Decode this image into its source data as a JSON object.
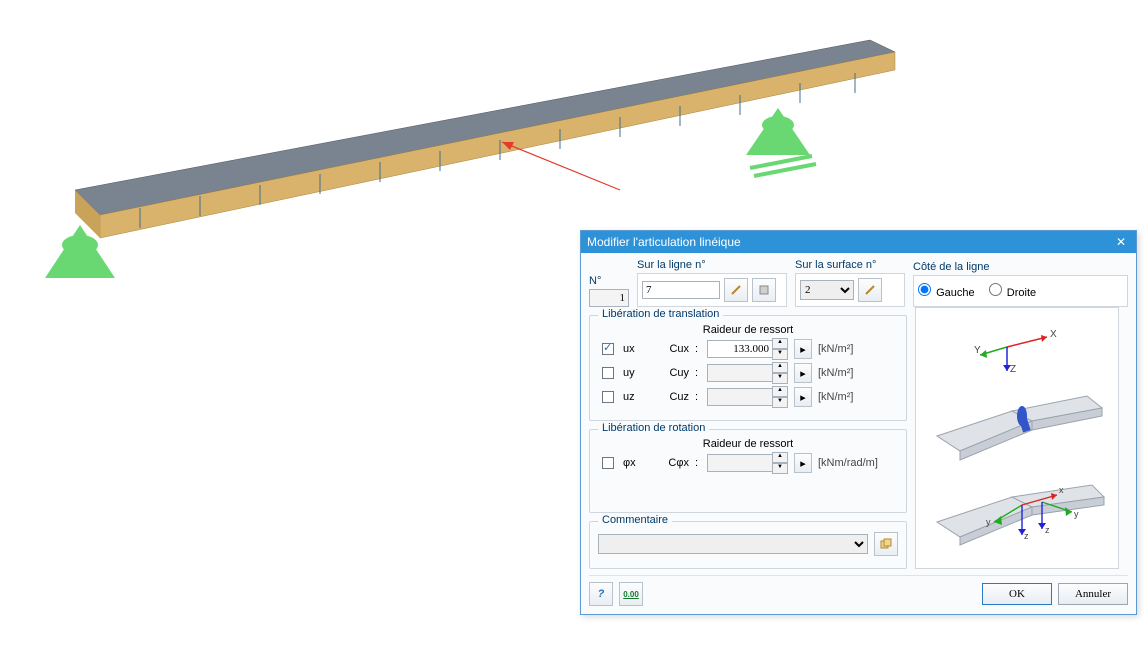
{
  "dialog": {
    "title": "Modifier l'articulation linéique",
    "close": "✕",
    "number_label": "N°",
    "number_value": "1",
    "line_label": "Sur la ligne n°",
    "line_value": "7",
    "surface_label": "Sur la surface n°",
    "surface_value": "2",
    "side_label": "Côté de la ligne",
    "side_left": "Gauche",
    "side_right": "Droite",
    "side_selected": "Gauche",
    "trans_legend": "Libération de translation",
    "spring_header": "Raideur de ressort",
    "rows_trans": [
      {
        "name": "ux",
        "coef": "Cux",
        "checked": true,
        "value": "133.000",
        "unit": "[kN/m²]"
      },
      {
        "name": "uy",
        "coef": "Cuy",
        "checked": false,
        "value": "",
        "unit": "[kN/m²]"
      },
      {
        "name": "uz",
        "coef": "Cuz",
        "checked": false,
        "value": "",
        "unit": "[kN/m²]"
      }
    ],
    "rot_legend": "Libération de rotation",
    "rows_rot": [
      {
        "name": "φx",
        "coef": "Cφx",
        "checked": false,
        "value": "",
        "unit": "[kNm/rad/m]"
      }
    ],
    "comment_legend": "Commentaire",
    "comment_value": "",
    "ok": "OK",
    "cancel": "Annuler"
  },
  "colors": {
    "titlebar": "#2e92d9",
    "accent": "#003a6a",
    "beam_top": "#6f7a84",
    "beam_side": "#d9b36b",
    "support": "#4fd25a",
    "arrow": "#d93a2b"
  },
  "preview_axes": {
    "x": "X",
    "y": "Y",
    "z": "Z",
    "sub": [
      "x",
      "y",
      "z",
      "y",
      "z"
    ]
  }
}
